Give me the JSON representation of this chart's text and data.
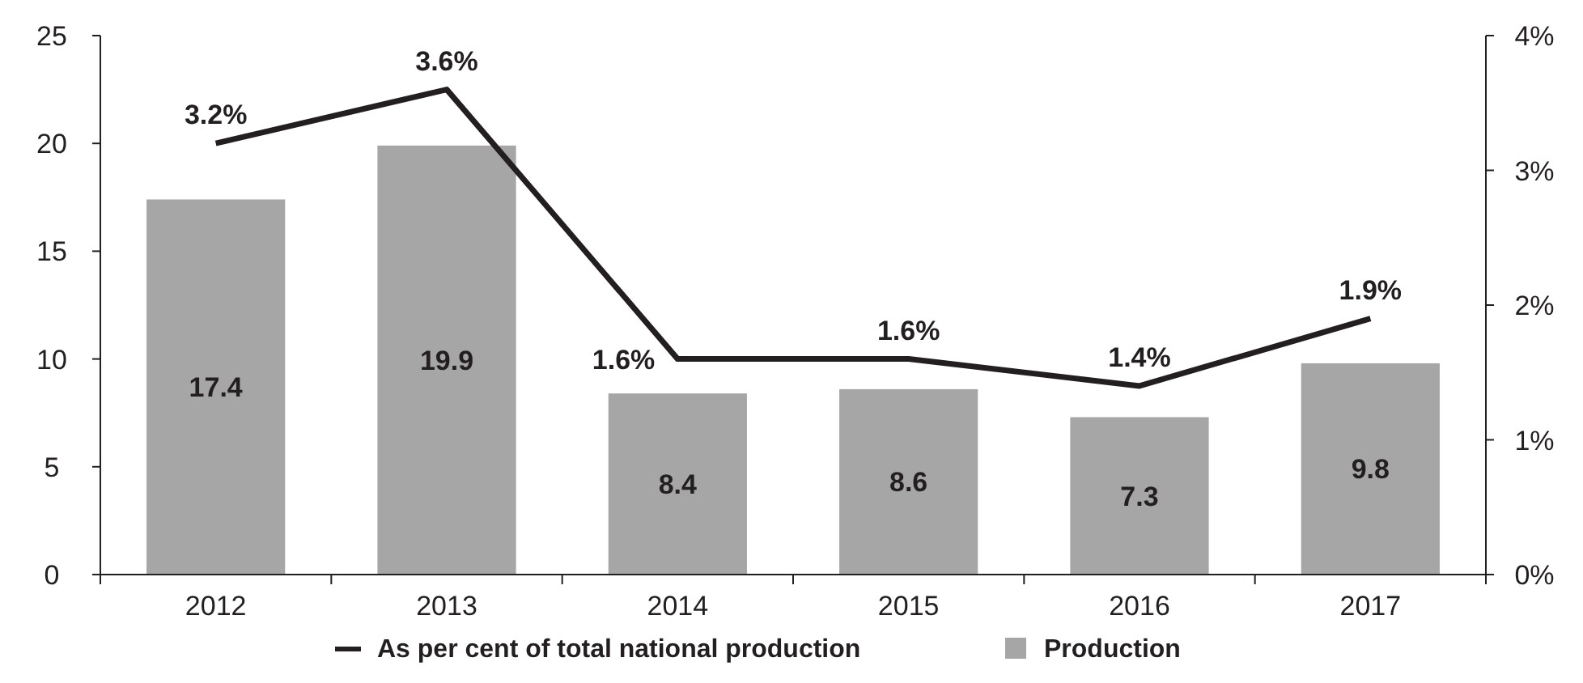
{
  "chart_data": {
    "type": "bar",
    "categories": [
      "2012",
      "2013",
      "2014",
      "2015",
      "2016",
      "2017"
    ],
    "series": [
      {
        "name": "Production",
        "color": "#a6a6a6",
        "values": [
          17.4,
          19.9,
          8.4,
          8.6,
          7.3,
          9.8
        ],
        "value_labels": [
          "17.4",
          "19.9",
          "8.4",
          "8.6",
          "7.3",
          "9.8"
        ]
      },
      {
        "name": "As per cent of total national production",
        "type": "line",
        "axis": "y2",
        "color": "#231f20",
        "values": [
          3.2,
          3.6,
          1.6,
          1.6,
          1.4,
          1.9
        ],
        "value_labels": [
          "3.2%",
          "3.6%",
          "1.6%",
          "1.6%",
          "1.4%",
          "1.9%"
        ]
      }
    ],
    "ylim": [
      0,
      25
    ],
    "yticks": [
      0,
      5,
      10,
      15,
      20,
      25
    ],
    "y2lim": [
      0,
      4
    ],
    "y2ticks": [
      {
        "value": 0,
        "label": "0%"
      },
      {
        "value": 1,
        "label": "1%"
      },
      {
        "value": 2,
        "label": "2%"
      },
      {
        "value": 3,
        "label": "3%"
      },
      {
        "value": 4,
        "label": "4%"
      }
    ],
    "grid": false,
    "legend": "bottom"
  }
}
